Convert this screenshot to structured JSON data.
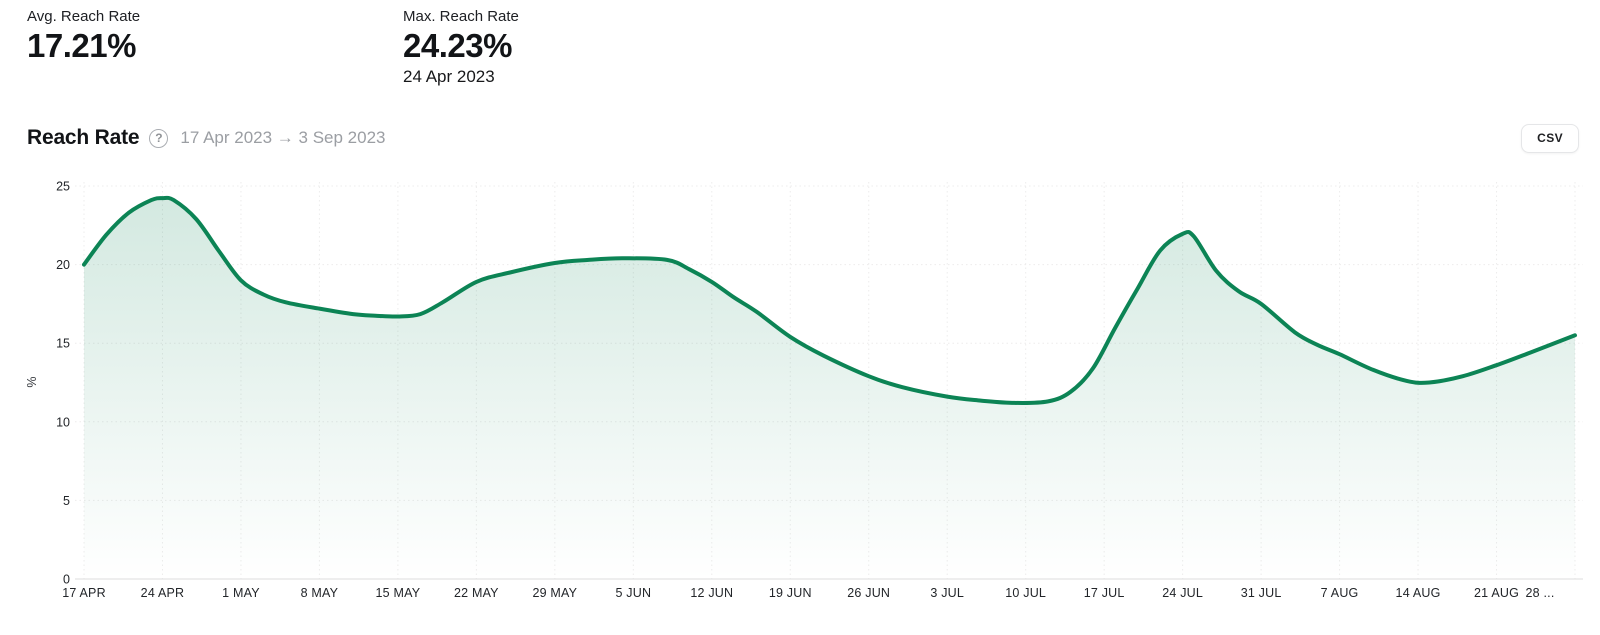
{
  "stats": {
    "avg": {
      "label": "Avg. Reach Rate",
      "value": "17.21%"
    },
    "max": {
      "label": "Max. Reach Rate",
      "value": "24.23%",
      "date": "24 Apr 2023"
    }
  },
  "header": {
    "title": "Reach Rate",
    "help_icon": "circled-question-mark-icon",
    "help_glyph": "?",
    "date_range": "17 Apr 2023 → 3 Sep 2023",
    "csv_button_label": "CSV"
  },
  "chart_data": {
    "type": "area",
    "title": "Reach Rate",
    "xlabel": "",
    "ylabel": "%",
    "ylim": [
      0,
      25
    ],
    "yticks": [
      0,
      5,
      10,
      15,
      20,
      25
    ],
    "x_tick_labels": [
      "17 APR",
      "24 APR",
      "1 MAY",
      "8 MAY",
      "15 MAY",
      "22 MAY",
      "29 MAY",
      "5 JUN",
      "12 JUN",
      "19 JUN",
      "26 JUN",
      "3 JUL",
      "10 JUL",
      "17 JUL",
      "24 JUL",
      "31 JUL",
      "7 AUG",
      "14 AUG",
      "21 AUG",
      "28 ..."
    ],
    "x_tick_interval_days": 7,
    "x_range_days": [
      0,
      133
    ],
    "grid": "dotted",
    "legend": "none",
    "series": [
      {
        "name": "Reach Rate",
        "unit": "%",
        "points_format": "[days_since_17_apr_2023, percent]",
        "points": [
          [
            0,
            20.0
          ],
          [
            2,
            21.9
          ],
          [
            4,
            23.3
          ],
          [
            6,
            24.1
          ],
          [
            7,
            24.23
          ],
          [
            8,
            24.1
          ],
          [
            10,
            22.9
          ],
          [
            12,
            20.9
          ],
          [
            14,
            19.0
          ],
          [
            16,
            18.1
          ],
          [
            18,
            17.6
          ],
          [
            21,
            17.2
          ],
          [
            24,
            16.85
          ],
          [
            26,
            16.75
          ],
          [
            28,
            16.7
          ],
          [
            30,
            16.85
          ],
          [
            32,
            17.6
          ],
          [
            35,
            18.9
          ],
          [
            38,
            19.5
          ],
          [
            42,
            20.1
          ],
          [
            45,
            20.3
          ],
          [
            48,
            20.4
          ],
          [
            52,
            20.3
          ],
          [
            54,
            19.7
          ],
          [
            56,
            18.9
          ],
          [
            58,
            17.9
          ],
          [
            60,
            17.0
          ],
          [
            63,
            15.4
          ],
          [
            66,
            14.2
          ],
          [
            70,
            12.9
          ],
          [
            73,
            12.2
          ],
          [
            77,
            11.6
          ],
          [
            80,
            11.35
          ],
          [
            83,
            11.2
          ],
          [
            86,
            11.3
          ],
          [
            88,
            11.9
          ],
          [
            90,
            13.4
          ],
          [
            92,
            16.0
          ],
          [
            94,
            18.5
          ],
          [
            96,
            20.9
          ],
          [
            98,
            21.95
          ],
          [
            99,
            21.8
          ],
          [
            101,
            19.6
          ],
          [
            103,
            18.3
          ],
          [
            105,
            17.5
          ],
          [
            108,
            15.7
          ],
          [
            110,
            14.9
          ],
          [
            112,
            14.3
          ],
          [
            115,
            13.3
          ],
          [
            118,
            12.6
          ],
          [
            120,
            12.5
          ],
          [
            123,
            12.9
          ],
          [
            126,
            13.6
          ],
          [
            129,
            14.4
          ],
          [
            133,
            15.5
          ]
        ]
      }
    ],
    "colors": {
      "line": "#0c8455",
      "area_top": "rgba(12,132,85,0.18)",
      "area_bottom": "rgba(12,132,85,0)",
      "grid": "#edecec",
      "axis": "#e3e3e3",
      "tick_text": "#222529",
      "ylabel_text": "#3a3d42"
    }
  }
}
